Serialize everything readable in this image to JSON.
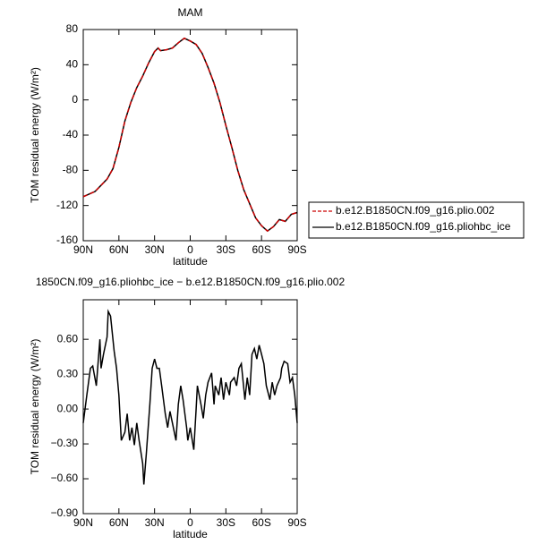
{
  "chart_data": [
    {
      "type": "line",
      "title": "MAM",
      "xlabel": "latitude",
      "ylabel": "TOM residual energy (W/m²)",
      "x": [
        90,
        80,
        70,
        65,
        60,
        55,
        50,
        45,
        40,
        35,
        30,
        27,
        25,
        20,
        15,
        10,
        5,
        0,
        -5,
        -10,
        -15,
        -20,
        -25,
        -30,
        -35,
        -40,
        -45,
        -50,
        -55,
        -60,
        -65,
        -70,
        -75,
        -80,
        -85,
        -90
      ],
      "series": [
        {
          "name": "b.e12.B1850CN.f09_g16.plio.002",
          "color": "#cc0000",
          "line_style": "dashed",
          "values": [
            -110,
            -104,
            -90,
            -78,
            -54,
            -24,
            -3,
            14,
            27,
            42,
            55,
            59,
            56,
            57,
            59,
            65,
            70,
            67,
            63,
            53,
            37,
            19,
            -3,
            -29,
            -54,
            -80,
            -102,
            -118,
            -134,
            -143,
            -149,
            -144,
            -136,
            -138,
            -130,
            -128
          ]
        },
        {
          "name": "b.e12.B1850CN.f09_g16.pliohbc_ice",
          "color": "#000000",
          "line_style": "solid",
          "values": [
            -110,
            -104,
            -90,
            -78,
            -54,
            -24,
            -3,
            14,
            27,
            42,
            55,
            59,
            56,
            57,
            59,
            65,
            70,
            67,
            63,
            53,
            37,
            19,
            -3,
            -29,
            -54,
            -80,
            -102,
            -118,
            -134,
            -143,
            -149,
            -144,
            -136,
            -138,
            -130,
            -128
          ]
        }
      ],
      "xlim": [
        90,
        -90
      ],
      "xticks": [
        {
          "value": 90,
          "label": "90N"
        },
        {
          "value": 60,
          "label": "60N"
        },
        {
          "value": 30,
          "label": "30N"
        },
        0,
        {
          "value": -30,
          "label": "30S"
        },
        {
          "value": -60,
          "label": "60S"
        },
        {
          "value": -90,
          "label": "90S"
        }
      ],
      "ylim": [
        -160,
        80
      ],
      "yticks": [
        80,
        40,
        0,
        -40,
        -80,
        -120,
        -160
      ],
      "legend": "right"
    },
    {
      "type": "line",
      "title": "1850CN.f09_g16.pliohbc_ice − b.e12.B1850CN.f09_g16.plio.002",
      "xlabel": "latitude",
      "ylabel": "TOM residual energy (W/m²)",
      "x": [
        90,
        87,
        84,
        82,
        79,
        76,
        75,
        73,
        70,
        69,
        67,
        64,
        62,
        60,
        58,
        55,
        53,
        51,
        49,
        47,
        45,
        43,
        40,
        39,
        37,
        34,
        32,
        30,
        28,
        26,
        24,
        21,
        19,
        17,
        15,
        12,
        10,
        8,
        6,
        3,
        2,
        0,
        -3,
        -5,
        -6,
        -9,
        -11,
        -13,
        -15,
        -18,
        -20,
        -21,
        -24,
        -26,
        -28,
        -30,
        -33,
        -34,
        -37,
        -39,
        -41,
        -43,
        -46,
        -48,
        -50,
        -52,
        -54,
        -56,
        -58,
        -60,
        -62,
        -64,
        -67,
        -69,
        -71,
        -73,
        -76,
        -77,
        -79,
        -82,
        -84,
        -86,
        -88,
        -90
      ],
      "values": [
        -0.12,
        0.12,
        0.35,
        0.37,
        0.2,
        0.6,
        0.35,
        0.47,
        0.62,
        0.84,
        0.8,
        0.5,
        0.35,
        0.12,
        -0.27,
        -0.2,
        -0.04,
        -0.27,
        -0.16,
        -0.31,
        -0.12,
        -0.27,
        -0.47,
        -0.65,
        -0.39,
        0.04,
        0.35,
        0.43,
        0.35,
        0.35,
        0.2,
        -0.04,
        -0.16,
        -0.02,
        -0.12,
        -0.27,
        0.04,
        0.2,
        0.08,
        -0.16,
        -0.27,
        -0.16,
        -0.35,
        0,
        0.2,
        0.04,
        -0.08,
        0.12,
        0.23,
        0.31,
        0.04,
        0.2,
        0.12,
        0.27,
        0.08,
        0.23,
        0.12,
        0.23,
        0.27,
        0.2,
        0.35,
        0.39,
        0.08,
        0.27,
        0.12,
        0.47,
        0.52,
        0.43,
        0.55,
        0.47,
        0.39,
        0.2,
        0.08,
        0.23,
        0.12,
        0.2,
        0.27,
        0.35,
        0.41,
        0.39,
        0.23,
        0.27,
        0.12,
        -0.12
      ],
      "color": "#000000",
      "xlim": [
        90,
        -90
      ],
      "xticks": [
        {
          "value": 90,
          "label": "90N"
        },
        {
          "value": 60,
          "label": "60N"
        },
        {
          "value": 30,
          "label": "30N"
        },
        0,
        {
          "value": -30,
          "label": "30S"
        },
        {
          "value": -60,
          "label": "60S"
        },
        {
          "value": -90,
          "label": "90S"
        }
      ],
      "ylim": [
        -0.9,
        0.94
      ],
      "yticks": [
        {
          "value": 0.6,
          "label": "0.60"
        },
        {
          "value": 0.3,
          "label": "0.30"
        },
        {
          "value": 0,
          "label": "0.00"
        },
        {
          "value": -0.3,
          "label": "−0.30"
        },
        {
          "value": -0.6,
          "label": "−0.60"
        },
        {
          "value": -0.9,
          "label": "−0.90"
        }
      ]
    }
  ]
}
